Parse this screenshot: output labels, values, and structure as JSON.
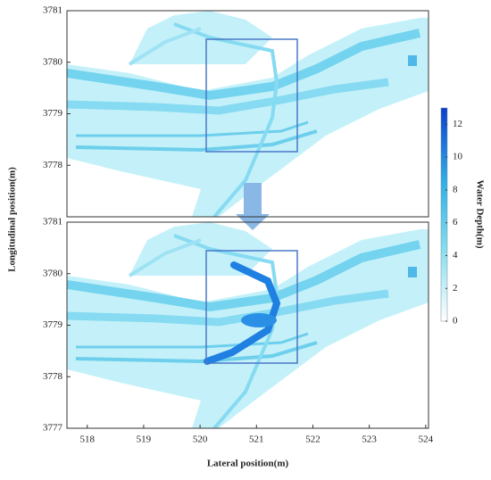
{
  "chart_data": [
    {
      "type": "depthmap",
      "ylabel": "Longitudinal position(m)",
      "xlim": [
        517.64,
        524.05
      ],
      "ylim": [
        3777,
        3781
      ],
      "yticks": [
        3778,
        3779,
        3780,
        3781
      ],
      "colorbar": {
        "label": "Water Depth(m)",
        "lim": [
          0,
          13
        ],
        "ticks": [
          0,
          2,
          4,
          6,
          8,
          10,
          12
        ]
      }
    },
    {
      "type": "depthmap",
      "xlabel": "Lateral position(m)",
      "xlim": [
        517.64,
        524.05
      ],
      "ylim": [
        3777,
        3781
      ],
      "yticks": [
        3777,
        3778,
        3779,
        3780,
        3781
      ],
      "xticks": [
        518,
        519,
        520,
        521,
        522,
        523,
        524
      ],
      "reinforced": true
    }
  ]
}
